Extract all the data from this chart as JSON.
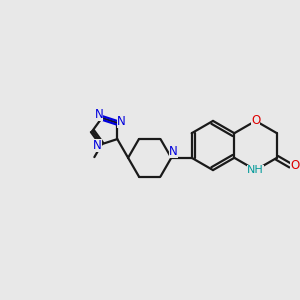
{
  "bg_color": "#e8e8e8",
  "bond_color": "#1a1a1a",
  "N_color": "#0000dd",
  "O_color": "#dd0000",
  "NH_color": "#009999",
  "lw": 1.6,
  "dbo": 0.07,
  "figsize": [
    3.0,
    3.0
  ],
  "dpi": 100,
  "xlim": [
    0,
    10
  ],
  "ylim": [
    0,
    10
  ]
}
